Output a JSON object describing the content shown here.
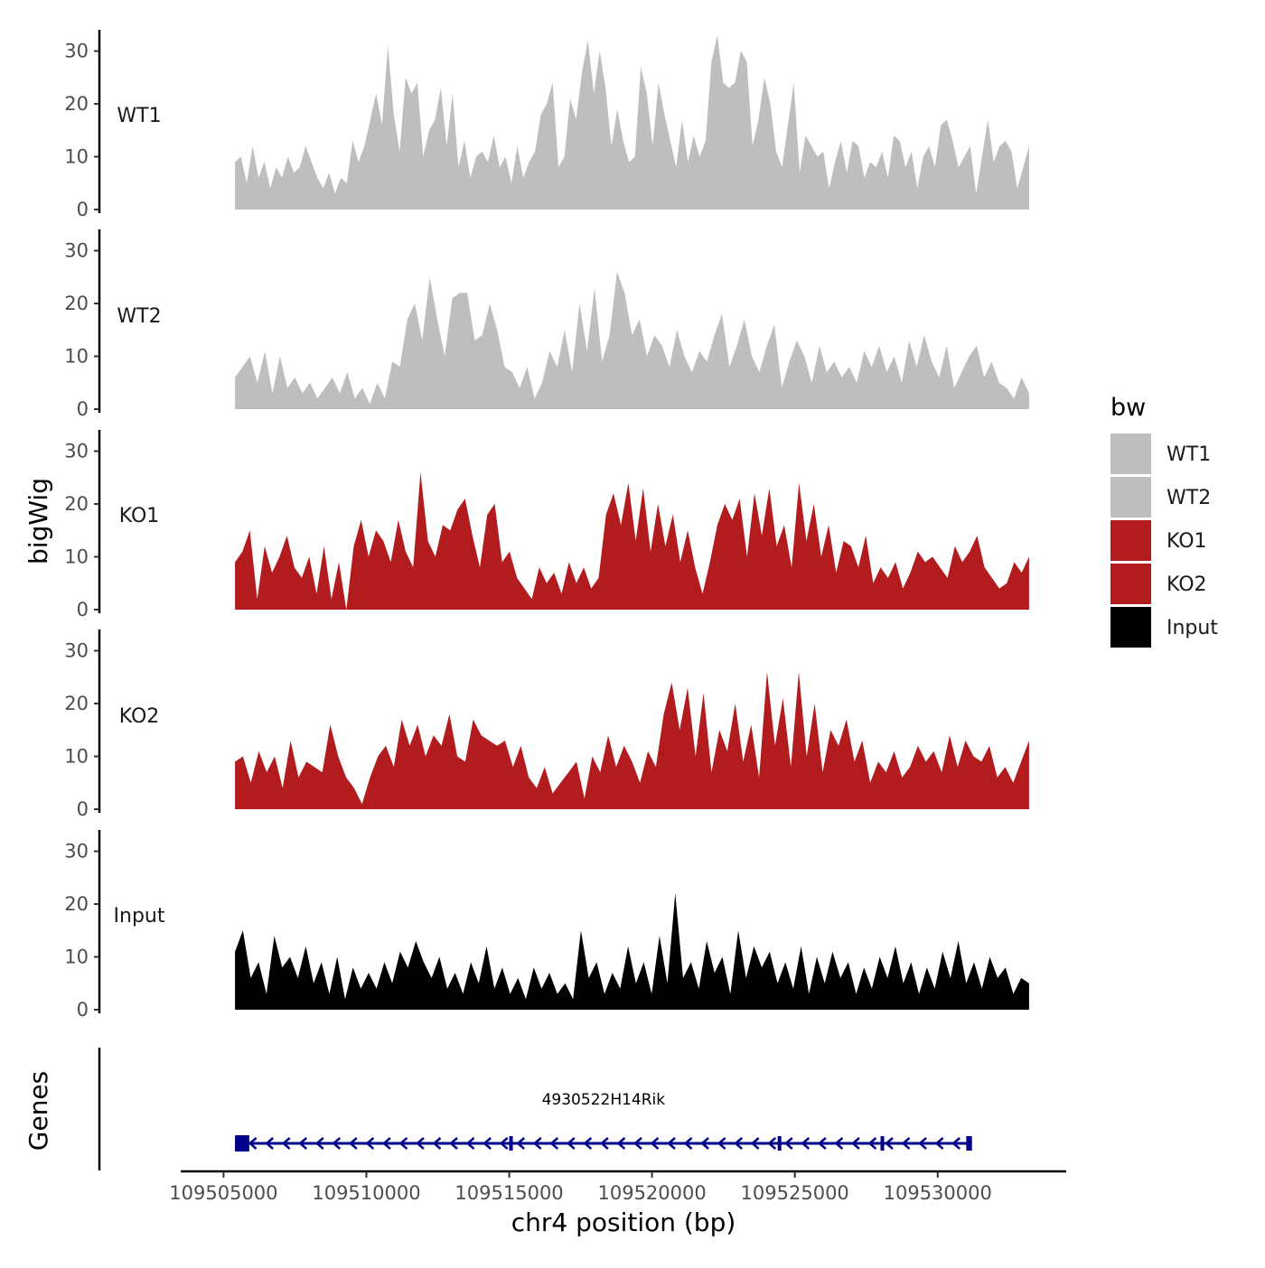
{
  "chart_data": {
    "type": "area",
    "ylabel": "bigWig",
    "xlabel": "chr4 position (bp)",
    "genes_label": "Genes",
    "ylim": [
      0,
      33
    ],
    "yticks": [
      0,
      10,
      20,
      30
    ],
    "xlim": [
      109503500,
      109534500
    ],
    "xticks": [
      109505000,
      109510000,
      109515000,
      109520000,
      109525000,
      109530000
    ],
    "xtick_labels": [
      "109505000",
      "109510000",
      "109515000",
      "109520000",
      "109525000",
      "109530000"
    ],
    "region": [
      109505400,
      109533200
    ],
    "legend": {
      "title": "bw",
      "entries": [
        {
          "label": "WT1",
          "color": "#bebebe"
        },
        {
          "label": "WT2",
          "color": "#bebebe"
        },
        {
          "label": "KO1",
          "color": "#b21c1f"
        },
        {
          "label": "KO2",
          "color": "#b21c1f"
        },
        {
          "label": "Input",
          "color": "#000000"
        }
      ]
    },
    "series": [
      {
        "name": "WT1",
        "color": "#bebebe",
        "values": [
          9,
          10,
          5,
          12,
          6,
          9,
          4,
          8,
          6,
          10,
          7,
          8,
          12,
          9,
          6,
          4,
          7,
          3,
          6,
          5,
          13,
          9,
          12,
          17,
          22,
          16,
          31,
          18,
          11,
          25,
          22,
          24,
          10,
          15,
          17,
          23,
          12,
          22,
          8,
          13,
          6,
          10,
          11,
          9,
          14,
          8,
          10,
          5,
          12,
          6,
          9,
          11,
          18,
          20,
          24,
          8,
          10,
          21,
          17,
          26,
          32,
          22,
          30,
          23,
          12,
          19,
          13,
          9,
          10,
          27,
          22,
          12,
          24,
          18,
          13,
          8,
          17,
          9,
          14,
          10,
          13,
          28,
          33,
          24,
          23,
          24,
          30,
          28,
          12,
          17,
          25,
          20,
          11,
          8,
          16,
          24,
          7,
          14,
          12,
          10,
          11,
          4,
          9,
          13,
          7,
          13,
          12,
          6,
          9,
          8,
          11,
          6,
          14,
          13,
          8,
          11,
          4,
          10,
          12,
          8,
          16,
          17,
          13,
          8,
          10,
          12,
          3,
          10,
          17,
          9,
          12,
          13,
          11,
          4,
          8,
          12
        ]
      },
      {
        "name": "WT2",
        "color": "#bebebe",
        "values": [
          6,
          8,
          10,
          5,
          11,
          3,
          10,
          4,
          6,
          3,
          5,
          2,
          4,
          6,
          3,
          7,
          2,
          4,
          1,
          5,
          2,
          9,
          8,
          17,
          20,
          13,
          25,
          17,
          10,
          21,
          22,
          22,
          13,
          14,
          20,
          15,
          8,
          7,
          4,
          8,
          2,
          5,
          11,
          8,
          15,
          7,
          20,
          11,
          23,
          9,
          14,
          26,
          22,
          14,
          17,
          10,
          14,
          12,
          8,
          15,
          10,
          7,
          11,
          9,
          14,
          18,
          8,
          12,
          17,
          10,
          7,
          12,
          16,
          4,
          9,
          13,
          10,
          5,
          12,
          7,
          9,
          6,
          8,
          5,
          11,
          8,
          12,
          7,
          10,
          5,
          13,
          8,
          14,
          9,
          6,
          12,
          4,
          7,
          10,
          12,
          6,
          9,
          5,
          4,
          2,
          6,
          3
        ]
      },
      {
        "name": "KO1",
        "color": "#b21c1f",
        "values": [
          9,
          11,
          15,
          2,
          12,
          7,
          10,
          14,
          8,
          6,
          10,
          3,
          12,
          2,
          9,
          0,
          12,
          17,
          10,
          15,
          13,
          9,
          17,
          11,
          8,
          26,
          13,
          10,
          16,
          15,
          19,
          21,
          14,
          8,
          18,
          20,
          9,
          11,
          6,
          4,
          2,
          8,
          5,
          7,
          3,
          9,
          5,
          8,
          4,
          6,
          18,
          22,
          16,
          24,
          13,
          23,
          11,
          20,
          12,
          18,
          9,
          15,
          8,
          3,
          9,
          16,
          20,
          17,
          21,
          10,
          22,
          14,
          23,
          12,
          16,
          8,
          24,
          13,
          20,
          10,
          16,
          7,
          13,
          12,
          8,
          14,
          5,
          8,
          6,
          9,
          4,
          7,
          11,
          9,
          10,
          8,
          6,
          12,
          9,
          11,
          14,
          8,
          6,
          4,
          5,
          9,
          7,
          10
        ]
      },
      {
        "name": "KO2",
        "color": "#b21c1f",
        "values": [
          9,
          10,
          5,
          11,
          7,
          10,
          4,
          13,
          6,
          9,
          8,
          7,
          16,
          10,
          6,
          4,
          1,
          6,
          10,
          12,
          8,
          17,
          12,
          16,
          10,
          14,
          12,
          18,
          10,
          9,
          17,
          14,
          13,
          12,
          13,
          8,
          12,
          6,
          4,
          8,
          3,
          5,
          7,
          9,
          2,
          10,
          7,
          14,
          8,
          12,
          9,
          5,
          11,
          8,
          18,
          24,
          15,
          23,
          10,
          22,
          7,
          15,
          11,
          20,
          9,
          16,
          6,
          26,
          12,
          21,
          8,
          26,
          10,
          20,
          7,
          15,
          12,
          17,
          9,
          13,
          5,
          9,
          7,
          11,
          6,
          8,
          12,
          9,
          11,
          7,
          14,
          8,
          13,
          10,
          9,
          12,
          6,
          8,
          5,
          9,
          13
        ]
      },
      {
        "name": "Input",
        "color": "#000000",
        "values": [
          11,
          15,
          6,
          9,
          3,
          14,
          8,
          10,
          6,
          12,
          5,
          9,
          3,
          10,
          2,
          8,
          4,
          7,
          4,
          9,
          5,
          11,
          8,
          13,
          9,
          6,
          10,
          4,
          7,
          3,
          9,
          5,
          12,
          4,
          8,
          3,
          6,
          2,
          8,
          4,
          7,
          3,
          5,
          2,
          15,
          6,
          9,
          3,
          7,
          4,
          12,
          5,
          9,
          3,
          14,
          5,
          22,
          6,
          9,
          4,
          13,
          7,
          10,
          3,
          15,
          6,
          12,
          8,
          11,
          5,
          9,
          4,
          12,
          3,
          10,
          5,
          11,
          6,
          9,
          3,
          8,
          4,
          10,
          6,
          12,
          5,
          9,
          3,
          8,
          4,
          11,
          6,
          13,
          5,
          9,
          4,
          10,
          6,
          8,
          3,
          6,
          5
        ]
      }
    ],
    "gene": {
      "name": "4930522H14Rik",
      "strand": "-",
      "start": 109505400,
      "end": 109531200,
      "exons": [
        [
          109505400,
          109505900
        ],
        [
          109515000,
          109515080
        ],
        [
          109524400,
          109524520
        ],
        [
          109528000,
          109528100
        ],
        [
          109531000,
          109531200
        ]
      ],
      "color": "#00008b"
    }
  }
}
